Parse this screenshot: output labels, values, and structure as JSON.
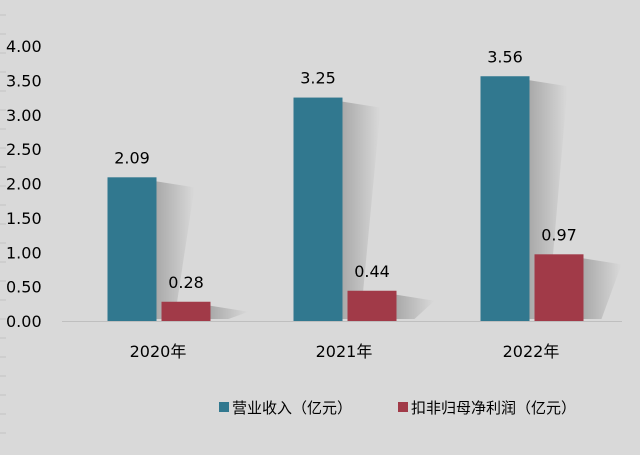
{
  "chart_data": {
    "type": "bar",
    "categories": [
      "2020年",
      "2021年",
      "2022年"
    ],
    "series": [
      {
        "name": "营业收入（亿元）",
        "values": [
          2.09,
          3.25,
          3.56
        ],
        "color": "#31788f"
      },
      {
        "name": "扣非归母净利润（亿元）",
        "values": [
          0.28,
          0.44,
          0.97
        ],
        "color": "#a13a48"
      }
    ],
    "yticks": [
      "0.00",
      "0.50",
      "1.00",
      "1.50",
      "2.00",
      "2.50",
      "3.00",
      "3.50",
      "4.00"
    ],
    "ylim": [
      0,
      4
    ],
    "data_labels": [
      [
        "2.09",
        "3.25",
        "3.56"
      ],
      [
        "0.28",
        "0.44",
        "0.97"
      ]
    ],
    "grid": false,
    "legend_position": "bottom",
    "background": "#d9d9d9"
  }
}
